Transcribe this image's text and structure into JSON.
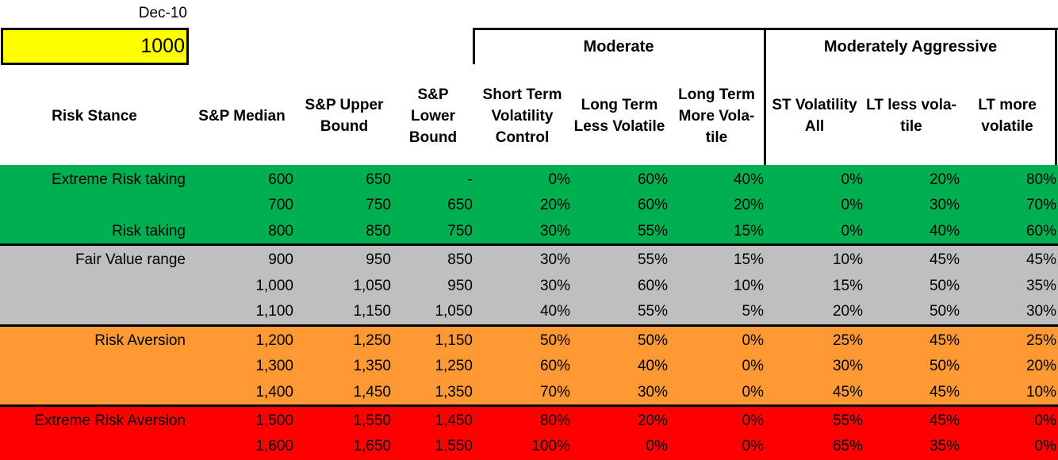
{
  "date_label": "Dec-10",
  "input_value": "1000",
  "groups": {
    "moderate": "Moderate",
    "moderately_aggressive": "Moderately Aggressive"
  },
  "headers": [
    [
      "Risk Stance"
    ],
    [
      "S&P Median"
    ],
    [
      "S&P Upper",
      "Bound"
    ],
    [
      "S&P",
      "Lower",
      "Bound"
    ],
    [
      "Short Term",
      "Volatility",
      "Control"
    ],
    [
      "Long Term",
      "Less Volatile"
    ],
    [
      "Long Term",
      "More Vola-",
      "tile"
    ],
    [
      "ST Volatility",
      "All"
    ],
    [
      "LT less vola-",
      "tile"
    ],
    [
      "LT more",
      "volatile"
    ]
  ],
  "colors": {
    "green": "#00b050",
    "gray": "#bfbfbf",
    "orange": "#ff9933",
    "red": "#ff0000",
    "yellow": "#ffff00"
  },
  "rows": [
    [
      "Extreme Risk taking",
      "600",
      "650",
      "-",
      "0%",
      "60%",
      "40%",
      "0%",
      "20%",
      "80%"
    ],
    [
      "",
      "700",
      "750",
      "650",
      "20%",
      "60%",
      "20%",
      "0%",
      "30%",
      "70%"
    ],
    [
      "Risk taking",
      "800",
      "850",
      "750",
      "30%",
      "55%",
      "15%",
      "0%",
      "40%",
      "60%"
    ],
    [
      "Fair Value range",
      "900",
      "950",
      "850",
      "30%",
      "55%",
      "15%",
      "10%",
      "45%",
      "45%"
    ],
    [
      "",
      "1,000",
      "1,050",
      "950",
      "30%",
      "60%",
      "10%",
      "15%",
      "50%",
      "35%"
    ],
    [
      "",
      "1,100",
      "1,150",
      "1,050",
      "40%",
      "55%",
      "5%",
      "20%",
      "50%",
      "30%"
    ],
    [
      "Risk Aversion",
      "1,200",
      "1,250",
      "1,150",
      "50%",
      "50%",
      "0%",
      "25%",
      "45%",
      "25%"
    ],
    [
      "",
      "1,300",
      "1,350",
      "1,250",
      "60%",
      "40%",
      "0%",
      "30%",
      "50%",
      "20%"
    ],
    [
      "",
      "1,400",
      "1,450",
      "1,350",
      "70%",
      "30%",
      "0%",
      "45%",
      "45%",
      "10%"
    ],
    [
      "Extreme Risk Aversion",
      "1,500",
      "1,550",
      "1,450",
      "80%",
      "20%",
      "0%",
      "55%",
      "45%",
      "0%"
    ],
    [
      "",
      "1,600",
      "1,650",
      "1,550",
      "100%",
      "0%",
      "0%",
      "65%",
      "35%",
      "0%"
    ]
  ]
}
